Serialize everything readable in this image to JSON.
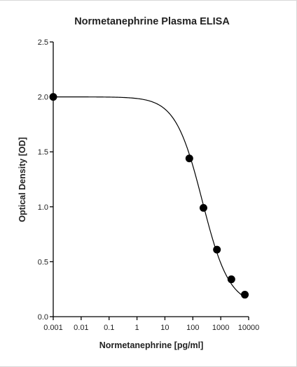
{
  "chart_data": {
    "type": "scatter",
    "title": "Normetanephrine Plasma ELISA",
    "xlabel": "Normetanephrine [pg/ml]",
    "ylabel": "Optical Density [OD]",
    "x_scale": "log",
    "xlim": [
      0.001,
      10000
    ],
    "ylim": [
      0,
      2.5
    ],
    "x_ticks": [
      0.001,
      0.01,
      0.1,
      1,
      10,
      100,
      1000,
      10000
    ],
    "x_tick_labels": [
      "0.001",
      "0.01",
      "0.1",
      "1",
      "10",
      "100",
      "1000",
      "10000"
    ],
    "y_ticks": [
      0,
      0.5,
      1.0,
      1.5,
      2.0,
      2.5
    ],
    "y_tick_labels": [
      "0.0",
      "0.5",
      "1.0",
      "1.5",
      "2.0",
      "2.5"
    ],
    "grid": false,
    "legend": "none",
    "series": [
      {
        "x": [
          0.001,
          75,
          240,
          730,
          2400,
          7300
        ],
        "y": [
          2.0,
          1.44,
          0.99,
          0.61,
          0.34,
          0.2
        ],
        "marker": "circle",
        "color": "#000000"
      }
    ],
    "fit_curve": {
      "model": "4PL",
      "top": 2.0,
      "bottom": 0.1,
      "ec50": 220,
      "hill_slope": 0.9,
      "color": "#000000"
    }
  }
}
